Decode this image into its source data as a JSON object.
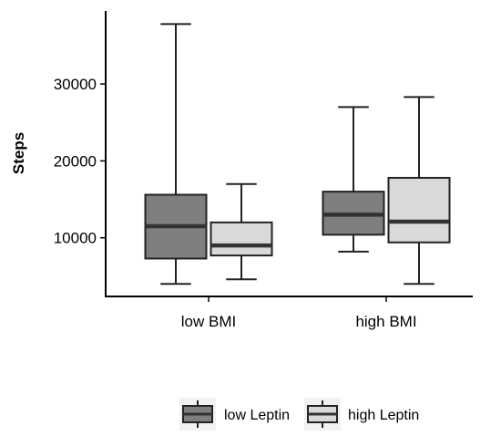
{
  "chart_data": {
    "type": "boxplot",
    "ylabel": "Steps",
    "xlabel": "",
    "categories": [
      "low BMI",
      "high BMI"
    ],
    "yticks": [
      10000,
      20000,
      30000
    ],
    "ytick_labels": [
      "10000",
      "20000",
      "30000"
    ],
    "ylim": [
      0,
      39500
    ],
    "grid": false,
    "legend_position": "bottom",
    "series": [
      {
        "name": "low Leptin",
        "color": "#7f7f7f",
        "boxes": [
          {
            "category": "low BMI",
            "min": 4000,
            "q1": 7300,
            "median": 11500,
            "q3": 15600,
            "max": 37800
          },
          {
            "category": "high BMI",
            "min": 8200,
            "q1": 10400,
            "median": 13000,
            "q3": 16000,
            "max": 27000
          }
        ]
      },
      {
        "name": "high Leptin",
        "color": "#d9d9d9",
        "boxes": [
          {
            "category": "low BMI",
            "min": 4600,
            "q1": 7700,
            "median": 9000,
            "q3": 12000,
            "max": 17000
          },
          {
            "category": "high BMI",
            "min": 4000,
            "q1": 9400,
            "median": 12100,
            "q3": 17800,
            "max": 28300
          }
        ]
      }
    ]
  }
}
